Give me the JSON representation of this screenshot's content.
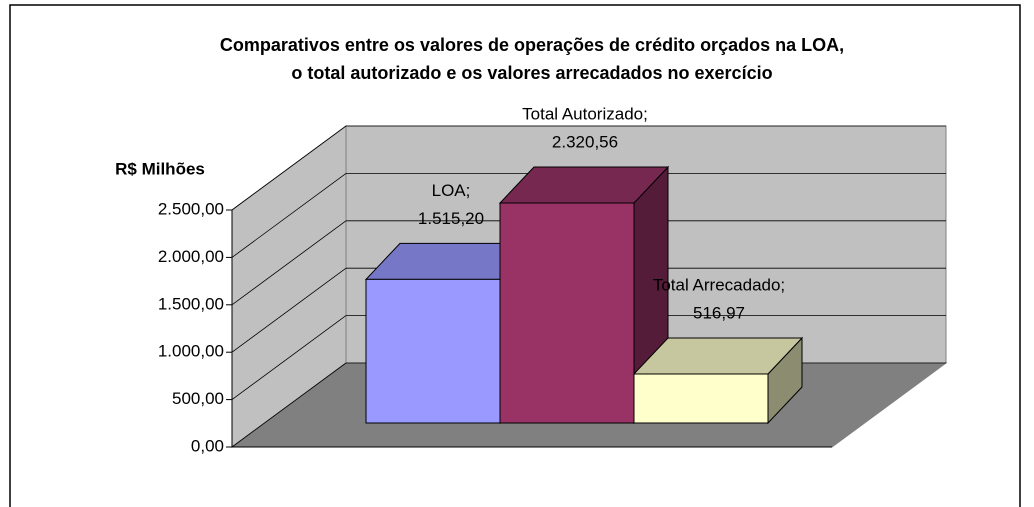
{
  "chart_data": {
    "type": "bar3d",
    "title": [
      "Comparativos entre os valores de operações de crédito orçados na LOA,",
      "o total autorizado e os valores arrecadados no exercício"
    ],
    "ylabel": "R$ Milhões",
    "categories": [
      "LOA;",
      "Total Autorizado;",
      "Total Arrecadado;"
    ],
    "values": [
      1515.2,
      2320.56,
      516.97
    ],
    "value_labels": [
      "1.515,20",
      "2.320,56",
      "516,97"
    ],
    "colors": [
      "#9999ff",
      "#993366",
      "#ffffcc"
    ],
    "ylim": [
      0,
      2500
    ],
    "yticks": [
      {
        "value": 0,
        "label": "0,00"
      },
      {
        "value": 500,
        "label": "500,00"
      },
      {
        "value": 1000,
        "label": "1.000,00"
      },
      {
        "value": 1500,
        "label": "1.500,00"
      },
      {
        "value": 2000,
        "label": "2.000,00"
      },
      {
        "value": 2500,
        "label": "2.500,00"
      }
    ],
    "grid": true
  }
}
